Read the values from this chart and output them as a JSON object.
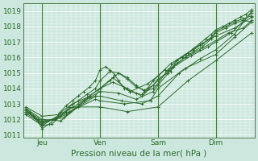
{
  "xlabel": "Pression niveau de la mer( hPa )",
  "xlim": [
    0,
    4.0
  ],
  "ylim": [
    1010.8,
    1019.5
  ],
  "yticks": [
    1011,
    1012,
    1013,
    1014,
    1015,
    1016,
    1017,
    1018,
    1019
  ],
  "xtick_positions": [
    0.33,
    1.33,
    2.33,
    3.33
  ],
  "xtick_labels": [
    "Jeu",
    "Ven",
    "Sam",
    "Dim"
  ],
  "vline_positions": [
    0.33,
    1.33,
    2.33,
    3.33
  ],
  "bg_color": "#cce8de",
  "grid_color": "#ffffff",
  "line_color": "#2d6a2d",
  "marker_color": "#2d6a2d",
  "series": [
    [
      0.05,
      1012.7,
      0.12,
      1012.5,
      0.18,
      1012.2,
      0.25,
      1011.9,
      0.33,
      1011.4,
      0.45,
      1011.7,
      0.55,
      1012.0,
      0.65,
      1012.5,
      0.75,
      1012.9,
      0.85,
      1013.2,
      0.95,
      1013.5,
      1.05,
      1013.8,
      1.15,
      1014.1,
      1.25,
      1014.5,
      1.33,
      1015.2,
      1.42,
      1015.4,
      1.5,
      1015.2,
      1.58,
      1014.9,
      1.65,
      1014.5,
      1.75,
      1014.0,
      1.85,
      1013.8,
      1.95,
      1013.7,
      2.05,
      1013.6,
      2.15,
      1014.0,
      2.25,
      1014.5,
      2.33,
      1014.8,
      2.45,
      1015.2,
      2.55,
      1015.1,
      2.65,
      1015.8,
      2.75,
      1016.0,
      2.85,
      1016.3,
      2.95,
      1016.6,
      3.05,
      1016.9,
      3.15,
      1017.2,
      3.25,
      1017.5,
      3.33,
      1017.8,
      3.45,
      1018.0,
      3.55,
      1018.2,
      3.65,
      1018.4,
      3.75,
      1018.6,
      3.85,
      1018.8,
      3.95,
      1019.1
    ],
    [
      0.05,
      1012.6,
      0.2,
      1012.1,
      0.33,
      1011.6,
      0.5,
      1011.7,
      0.65,
      1012.2,
      0.8,
      1012.8,
      0.95,
      1013.2,
      1.1,
      1013.6,
      1.25,
      1014.0,
      1.33,
      1014.5,
      1.5,
      1015.1,
      1.65,
      1015.0,
      1.8,
      1014.6,
      1.95,
      1014.1,
      2.1,
      1013.9,
      2.25,
      1014.2,
      2.33,
      1014.6,
      2.5,
      1015.0,
      2.65,
      1015.6,
      2.8,
      1016.0,
      2.95,
      1016.4,
      3.1,
      1016.7,
      3.25,
      1017.2,
      3.33,
      1017.6,
      3.5,
      1017.9,
      3.65,
      1018.2,
      3.8,
      1018.4,
      3.95,
      1018.3
    ],
    [
      0.05,
      1012.5,
      0.25,
      1012.0,
      0.33,
      1011.8,
      0.55,
      1012.0,
      0.75,
      1012.5,
      0.95,
      1013.0,
      1.15,
      1013.5,
      1.33,
      1014.0,
      1.5,
      1014.5,
      1.65,
      1015.0,
      1.8,
      1014.7,
      1.95,
      1014.2,
      2.1,
      1013.8,
      2.25,
      1014.0,
      2.33,
      1014.3,
      2.5,
      1015.2,
      2.65,
      1015.8,
      2.8,
      1016.2,
      2.95,
      1016.5,
      3.1,
      1016.9,
      3.25,
      1017.3,
      3.33,
      1017.7,
      3.5,
      1018.0,
      3.65,
      1018.3,
      3.8,
      1018.5,
      3.95,
      1018.7
    ],
    [
      0.05,
      1012.8,
      0.33,
      1012.2,
      0.6,
      1012.3,
      0.85,
      1013.0,
      1.1,
      1013.4,
      1.33,
      1014.0,
      1.55,
      1014.4,
      1.8,
      1014.0,
      2.05,
      1013.5,
      2.33,
      1014.5,
      2.55,
      1015.3,
      2.8,
      1016.0,
      3.05,
      1016.5,
      3.33,
      1017.1,
      3.55,
      1017.6,
      3.8,
      1017.9,
      3.95,
      1018.4
    ],
    [
      0.05,
      1012.7,
      0.33,
      1012.0,
      0.65,
      1011.9,
      0.95,
      1012.8,
      1.25,
      1013.5,
      1.33,
      1014.0,
      1.55,
      1014.7,
      1.85,
      1013.8,
      2.15,
      1014.3,
      2.33,
      1014.8,
      2.55,
      1015.6,
      2.85,
      1016.3,
      3.05,
      1016.8,
      3.33,
      1017.4,
      3.65,
      1017.9,
      3.95,
      1018.6
    ],
    [
      0.05,
      1012.6,
      0.33,
      1011.9,
      0.7,
      1012.1,
      1.05,
      1013.2,
      1.33,
      1013.8,
      1.65,
      1013.7,
      1.95,
      1013.3,
      2.25,
      1013.8,
      2.33,
      1014.2,
      2.6,
      1015.4,
      2.9,
      1016.1,
      3.2,
      1016.7,
      3.33,
      1017.0,
      3.6,
      1017.6,
      3.95,
      1018.9
    ],
    [
      0.05,
      1012.5,
      0.33,
      1011.8,
      0.75,
      1012.3,
      1.15,
      1013.4,
      1.33,
      1013.5,
      1.7,
      1013.2,
      2.05,
      1013.0,
      2.33,
      1013.5,
      2.7,
      1015.0,
      3.05,
      1015.9,
      3.33,
      1016.5,
      3.65,
      1017.5,
      3.95,
      1019.0
    ],
    [
      0.05,
      1012.4,
      0.33,
      1011.7,
      0.8,
      1012.5,
      1.25,
      1013.3,
      1.33,
      1013.2,
      1.75,
      1013.0,
      2.2,
      1013.2,
      2.33,
      1014.0,
      2.8,
      1015.3,
      3.33,
      1016.2,
      3.65,
      1017.3,
      3.95,
      1018.3
    ],
    [
      0.05,
      1012.3,
      0.33,
      1011.6,
      0.85,
      1012.8,
      1.33,
      1012.8,
      1.8,
      1012.5,
      2.33,
      1012.8,
      2.85,
      1014.5,
      3.33,
      1015.8,
      3.95,
      1017.6
    ]
  ]
}
